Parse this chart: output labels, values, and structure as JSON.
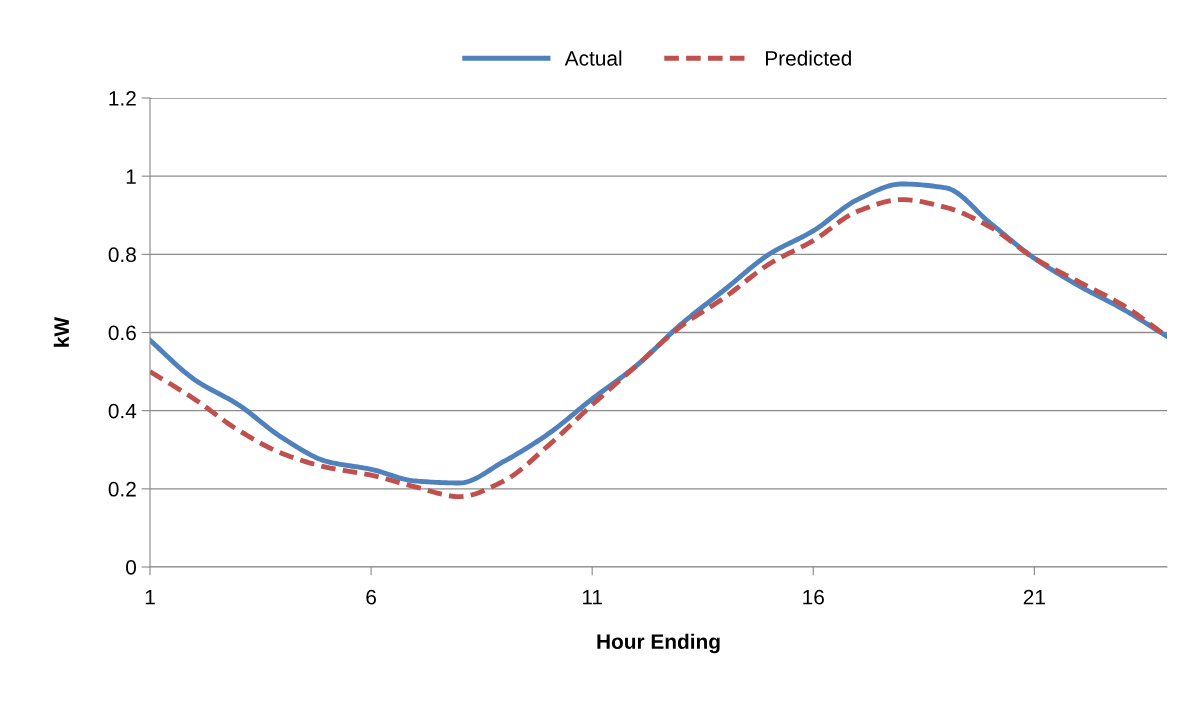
{
  "chart_data": {
    "type": "line",
    "xlabel": "Hour Ending",
    "ylabel": "kW",
    "x": [
      1,
      2,
      3,
      4,
      5,
      6,
      7,
      8,
      9,
      10,
      11,
      12,
      13,
      14,
      15,
      16,
      17,
      18,
      19,
      20,
      21,
      22,
      23,
      24
    ],
    "series": [
      {
        "name": "Actual",
        "color": "#4f81bd",
        "line_style": "solid",
        "values": [
          0.58,
          0.48,
          0.415,
          0.33,
          0.27,
          0.25,
          0.22,
          0.215,
          0.27,
          0.34,
          0.43,
          0.515,
          0.62,
          0.71,
          0.8,
          0.86,
          0.94,
          0.98,
          0.97,
          0.88,
          0.79,
          0.72,
          0.66,
          0.59
        ]
      },
      {
        "name": "Predicted",
        "color": "#c0504d",
        "line_style": "dashed",
        "values": [
          0.5,
          0.43,
          0.35,
          0.29,
          0.255,
          0.235,
          0.205,
          0.18,
          0.22,
          0.31,
          0.415,
          0.515,
          0.615,
          0.69,
          0.775,
          0.835,
          0.91,
          0.94,
          0.92,
          0.87,
          0.79,
          0.73,
          0.67,
          0.59
        ]
      }
    ],
    "xlim": [
      1,
      24
    ],
    "xticks": [
      1,
      6,
      11,
      16,
      21
    ],
    "ylim": [
      0,
      1.2
    ],
    "yticks": [
      0,
      0.2,
      0.4,
      0.6,
      0.8,
      1,
      1.2
    ],
    "grid": "y",
    "legend": "top",
    "marker": "none"
  }
}
